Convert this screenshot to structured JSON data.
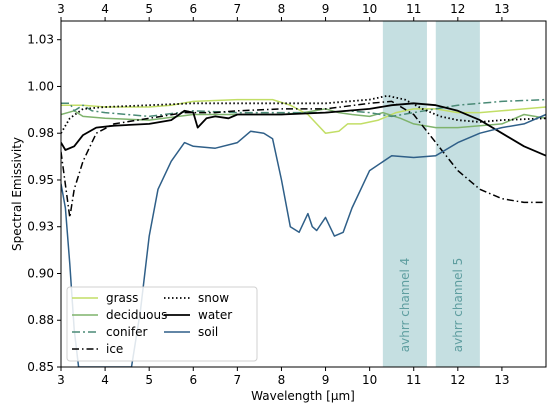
{
  "chart_data": {
    "type": "line",
    "xlabel": "Wavelength [μm]",
    "ylabel": "Spectral Emissivity",
    "xlim": [
      3,
      14
    ],
    "ylim": [
      0.85,
      1.035
    ],
    "x_ticks": [
      3,
      4,
      5,
      6,
      7,
      8,
      9,
      10,
      11,
      12,
      13
    ],
    "y_ticks": [
      {
        "value": 0.85,
        "label": "0.85"
      },
      {
        "value": 0.875,
        "label": "0.88"
      },
      {
        "value": 0.9,
        "label": "0.90"
      },
      {
        "value": 0.925,
        "label": "0.93"
      },
      {
        "value": 0.95,
        "label": "0.95"
      },
      {
        "value": 0.975,
        "label": "0.98"
      },
      {
        "value": 1.0,
        "label": "1.00"
      },
      {
        "value": 1.025,
        "label": "1.03"
      }
    ],
    "grid": false,
    "legend_position": "lower-left",
    "bands": [
      {
        "label": "avhrr channel 4",
        "x_start": 10.3,
        "x_end": 11.3,
        "color": "#c5dfe1",
        "text_color": "#5f9ea0"
      },
      {
        "label": "avhrr channel 5",
        "x_start": 11.5,
        "x_end": 12.5,
        "color": "#c5dfe1",
        "text_color": "#5f9ea0"
      }
    ],
    "series": [
      {
        "name": "grass",
        "color": "#c2de66",
        "dash": "",
        "width": 1.5,
        "points": [
          [
            3,
            0.99
          ],
          [
            3.5,
            0.99
          ],
          [
            4,
            0.989
          ],
          [
            5,
            0.989
          ],
          [
            5.5,
            0.99
          ],
          [
            6,
            0.992
          ],
          [
            7,
            0.993
          ],
          [
            7.8,
            0.993
          ],
          [
            8.2,
            0.99
          ],
          [
            8.6,
            0.985
          ],
          [
            9.0,
            0.975
          ],
          [
            9.3,
            0.976
          ],
          [
            9.5,
            0.98
          ],
          [
            9.8,
            0.98
          ],
          [
            10.2,
            0.982
          ],
          [
            10.6,
            0.986
          ],
          [
            11,
            0.988
          ],
          [
            11.5,
            0.988
          ],
          [
            12,
            0.986
          ],
          [
            12.5,
            0.986
          ],
          [
            13,
            0.987
          ],
          [
            14,
            0.989
          ]
        ]
      },
      {
        "name": "deciduous",
        "color": "#7fb36c",
        "dash": "",
        "width": 1.5,
        "points": [
          [
            3,
            0.985
          ],
          [
            3.3,
            0.987
          ],
          [
            3.5,
            0.984
          ],
          [
            4,
            0.983
          ],
          [
            5,
            0.982
          ],
          [
            6,
            0.985
          ],
          [
            6.5,
            0.985
          ],
          [
            7,
            0.985
          ],
          [
            7.5,
            0.985
          ],
          [
            8,
            0.985
          ],
          [
            8.5,
            0.986
          ],
          [
            9,
            0.988
          ],
          [
            9.3,
            0.986
          ],
          [
            9.6,
            0.985
          ],
          [
            10,
            0.984
          ],
          [
            10.3,
            0.986
          ],
          [
            10.7,
            0.983
          ],
          [
            11,
            0.98
          ],
          [
            11.5,
            0.978
          ],
          [
            12,
            0.978
          ],
          [
            12.5,
            0.979
          ],
          [
            13,
            0.98
          ],
          [
            13.5,
            0.985
          ],
          [
            14,
            0.983
          ]
        ]
      },
      {
        "name": "conifer",
        "color": "#4a8a76",
        "dash": "8,3,2,3",
        "width": 1.5,
        "points": [
          [
            3,
            0.991
          ],
          [
            3.2,
            0.991
          ],
          [
            3.3,
            0.987
          ],
          [
            3.5,
            0.99
          ],
          [
            3.7,
            0.987
          ],
          [
            4,
            0.986
          ],
          [
            5,
            0.984
          ],
          [
            6,
            0.987
          ],
          [
            7,
            0.986
          ],
          [
            8,
            0.986
          ],
          [
            9,
            0.986
          ],
          [
            9.5,
            0.987
          ],
          [
            10,
            0.986
          ],
          [
            10.5,
            0.984
          ],
          [
            11,
            0.986
          ],
          [
            11.5,
            0.988
          ],
          [
            12,
            0.99
          ],
          [
            12.5,
            0.991
          ],
          [
            13,
            0.992
          ],
          [
            14,
            0.993
          ]
        ]
      },
      {
        "name": "ice",
        "color": "#000000",
        "dash": "7,3,1.5,3",
        "width": 1.5,
        "points": [
          [
            3,
            0.965
          ],
          [
            3.2,
            0.93
          ],
          [
            3.3,
            0.945
          ],
          [
            3.5,
            0.96
          ],
          [
            3.8,
            0.975
          ],
          [
            4.2,
            0.98
          ],
          [
            5,
            0.983
          ],
          [
            5.8,
            0.986
          ],
          [
            6.5,
            0.986
          ],
          [
            7,
            0.987
          ],
          [
            8,
            0.988
          ],
          [
            9,
            0.988
          ],
          [
            10,
            0.991
          ],
          [
            10.5,
            0.992
          ],
          [
            11,
            0.985
          ],
          [
            11.5,
            0.97
          ],
          [
            12,
            0.955
          ],
          [
            12.5,
            0.945
          ],
          [
            13,
            0.94
          ],
          [
            13.5,
            0.938
          ],
          [
            14,
            0.938
          ]
        ]
      },
      {
        "name": "snow",
        "color": "#000000",
        "dash": "1.5,2.5",
        "width": 1.8,
        "points": [
          [
            3,
            0.975
          ],
          [
            3.2,
            0.983
          ],
          [
            3.5,
            0.988
          ],
          [
            4,
            0.989
          ],
          [
            5,
            0.99
          ],
          [
            6,
            0.991
          ],
          [
            7,
            0.991
          ],
          [
            8,
            0.991
          ],
          [
            9,
            0.991
          ],
          [
            10,
            0.993
          ],
          [
            10.4,
            0.995
          ],
          [
            10.8,
            0.993
          ],
          [
            11.2,
            0.988
          ],
          [
            11.6,
            0.984
          ],
          [
            12,
            0.982
          ],
          [
            12.5,
            0.981
          ],
          [
            13,
            0.982
          ],
          [
            14,
            0.983
          ]
        ]
      },
      {
        "name": "water",
        "color": "#000000",
        "dash": "",
        "width": 1.8,
        "points": [
          [
            3,
            0.97
          ],
          [
            3.1,
            0.966
          ],
          [
            3.3,
            0.968
          ],
          [
            3.5,
            0.974
          ],
          [
            3.8,
            0.978
          ],
          [
            4.2,
            0.979
          ],
          [
            5,
            0.98
          ],
          [
            5.5,
            0.982
          ],
          [
            5.8,
            0.987
          ],
          [
            6.0,
            0.986
          ],
          [
            6.1,
            0.978
          ],
          [
            6.3,
            0.983
          ],
          [
            6.5,
            0.984
          ],
          [
            6.8,
            0.983
          ],
          [
            7,
            0.985
          ],
          [
            7.5,
            0.985
          ],
          [
            8,
            0.985
          ],
          [
            9,
            0.986
          ],
          [
            10,
            0.988
          ],
          [
            10.5,
            0.99
          ],
          [
            11,
            0.991
          ],
          [
            11.5,
            0.99
          ],
          [
            12,
            0.987
          ],
          [
            12.5,
            0.982
          ],
          [
            13,
            0.975
          ],
          [
            13.5,
            0.968
          ],
          [
            14,
            0.963
          ]
        ]
      },
      {
        "name": "soil",
        "color": "#2f5f88",
        "dash": "",
        "width": 1.5,
        "points": [
          [
            3,
            0.948
          ],
          [
            3.1,
            0.935
          ],
          [
            3.2,
            0.905
          ],
          [
            3.3,
            0.87
          ],
          [
            3.4,
            0.85
          ],
          [
            4.6,
            0.85
          ],
          [
            4.8,
            0.88
          ],
          [
            5.0,
            0.92
          ],
          [
            5.2,
            0.945
          ],
          [
            5.5,
            0.96
          ],
          [
            5.8,
            0.97
          ],
          [
            6.0,
            0.968
          ],
          [
            6.5,
            0.967
          ],
          [
            7.0,
            0.97
          ],
          [
            7.3,
            0.976
          ],
          [
            7.6,
            0.975
          ],
          [
            7.8,
            0.972
          ],
          [
            8.0,
            0.95
          ],
          [
            8.2,
            0.925
          ],
          [
            8.4,
            0.922
          ],
          [
            8.6,
            0.932
          ],
          [
            8.7,
            0.925
          ],
          [
            8.8,
            0.923
          ],
          [
            9.0,
            0.93
          ],
          [
            9.2,
            0.92
          ],
          [
            9.4,
            0.922
          ],
          [
            9.6,
            0.935
          ],
          [
            9.8,
            0.945
          ],
          [
            10.0,
            0.955
          ],
          [
            10.5,
            0.963
          ],
          [
            11,
            0.962
          ],
          [
            11.5,
            0.963
          ],
          [
            12,
            0.97
          ],
          [
            12.5,
            0.975
          ],
          [
            13,
            0.978
          ],
          [
            13.5,
            0.98
          ],
          [
            14,
            0.985
          ]
        ]
      }
    ]
  }
}
